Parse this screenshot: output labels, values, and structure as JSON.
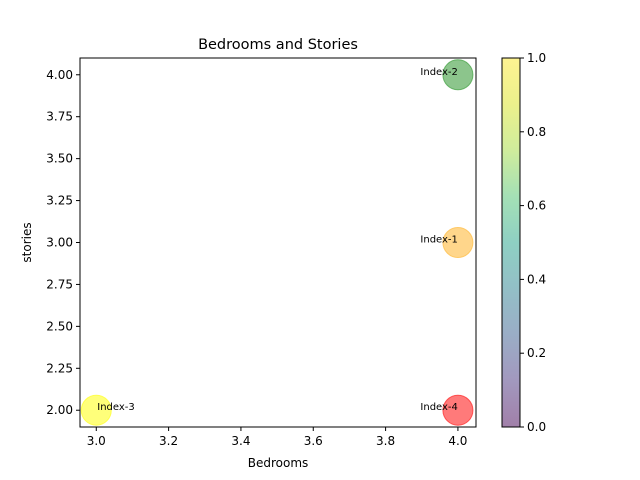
{
  "chart_data": {
    "type": "scatter",
    "title": "Bedrooms and Stories",
    "xlabel": "Bedrooms",
    "ylabel": "stories",
    "xlim": [
      2.955,
      4.05
    ],
    "ylim": [
      1.9,
      4.1
    ],
    "xticks": [
      3.0,
      3.2,
      3.4,
      3.6,
      3.8,
      4.0
    ],
    "xtick_labels": [
      "3.0",
      "3.2",
      "3.4",
      "3.6",
      "3.8",
      "4.0"
    ],
    "yticks": [
      2.0,
      2.25,
      2.5,
      2.75,
      3.0,
      3.25,
      3.5,
      3.75,
      4.0
    ],
    "ytick_labels": [
      "2.00",
      "2.25",
      "2.50",
      "2.75",
      "3.00",
      "3.25",
      "3.50",
      "3.75",
      "4.00"
    ],
    "grid": false,
    "points": [
      {
        "label": "Index-1",
        "x": 4.0,
        "y": 3.0,
        "color": "#ffc04d"
      },
      {
        "label": "Index-2",
        "x": 4.0,
        "y": 4.0,
        "color": "#4ea64e"
      },
      {
        "label": "Index-3",
        "x": 3.0,
        "y": 2.0,
        "color": "#ffff33"
      },
      {
        "label": "Index-4",
        "x": 4.0,
        "y": 2.0,
        "color": "#ff3333"
      }
    ],
    "colorbar": {
      "range": [
        0.0,
        1.0
      ],
      "ticks": [
        0.0,
        0.2,
        0.4,
        0.6,
        0.8,
        1.0
      ],
      "tick_labels": [
        "0.0",
        "0.2",
        "0.4",
        "0.6",
        "0.8",
        "1.0"
      ],
      "colormap": "viridis",
      "alpha": 0.5
    }
  }
}
